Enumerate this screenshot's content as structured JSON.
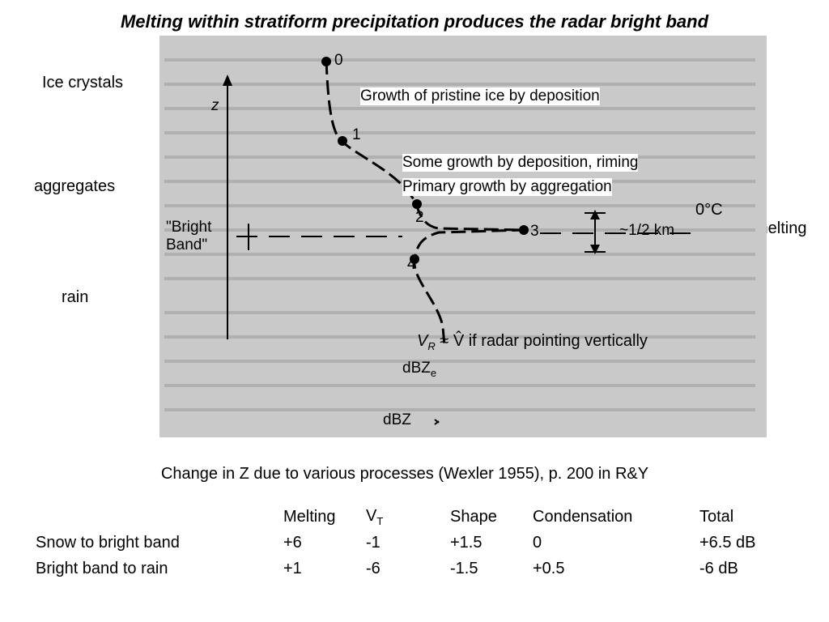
{
  "title": "Melting within stratiform precipitation produces the radar bright band",
  "side_labels": {
    "ice_crystals": "Ice crystals",
    "aggregates": "aggregates",
    "melting": "melting",
    "rain": "rain"
  },
  "diagram": {
    "z_axis_label": "z",
    "points": [
      "0",
      "1",
      "2",
      "3",
      "4"
    ],
    "growth_pristine": "Growth of pristine ice by deposition",
    "growth_riming": "Some growth by deposition, riming",
    "growth_aggregation": "Primary growth by aggregation",
    "bright_band_line1": "\"Bright",
    "bright_band_line2": "Band\"",
    "zero_c": "0°C",
    "half_km": "~1/2 km",
    "vr_text": "V",
    "vr_sub": "R",
    "vr_rest": " ≈ V̂  if radar pointing vertically",
    "dbze": "dBZ",
    "dbze_sub": "e",
    "dbz": "dBZ"
  },
  "caption": "Change in Z due to various processes (Wexler 1955), p. 200 in R&Y",
  "table": {
    "headers": [
      "",
      "Melting",
      "V",
      "Shape",
      "Condensation",
      "Total"
    ],
    "vt_sub": "T",
    "rows": [
      [
        "Snow to bright band",
        "+6",
        "-1",
        "+1.5",
        "0",
        "+6.5 dB"
      ],
      [
        "Bright band to rain",
        "+1",
        "-6",
        "-1.5",
        "+0.5",
        "-6 dB"
      ]
    ]
  }
}
